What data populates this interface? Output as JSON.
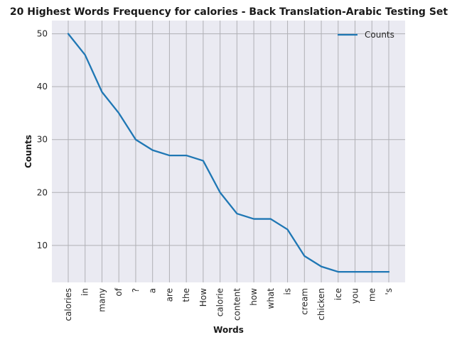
{
  "chart_data": {
    "type": "line",
    "title": "20 Highest Words Frequency for calories - Back Translation-Arabic Testing Set",
    "xlabel": "Words",
    "ylabel": "Counts",
    "categories": [
      "calories",
      "in",
      "many",
      "of",
      "?",
      "a",
      "are",
      "the",
      "How",
      "calorie",
      "content",
      "how",
      "what",
      "is",
      "cream",
      "chicken",
      "ice",
      "you",
      "me",
      "'s"
    ],
    "series": [
      {
        "name": "Counts",
        "values": [
          50,
          46,
          39,
          35,
          30,
          28,
          27,
          27,
          26,
          20,
          16,
          15,
          15,
          13,
          8,
          6,
          5,
          5,
          5,
          5
        ]
      }
    ],
    "ylim": [
      3,
      52.5
    ],
    "yticks": [
      10,
      20,
      30,
      40,
      50
    ],
    "grid": true,
    "legend": "top-right",
    "colors": {
      "line": "#1f77b4",
      "plot_bg": "#eaeaf2",
      "grid": "#b0b0b5"
    }
  }
}
